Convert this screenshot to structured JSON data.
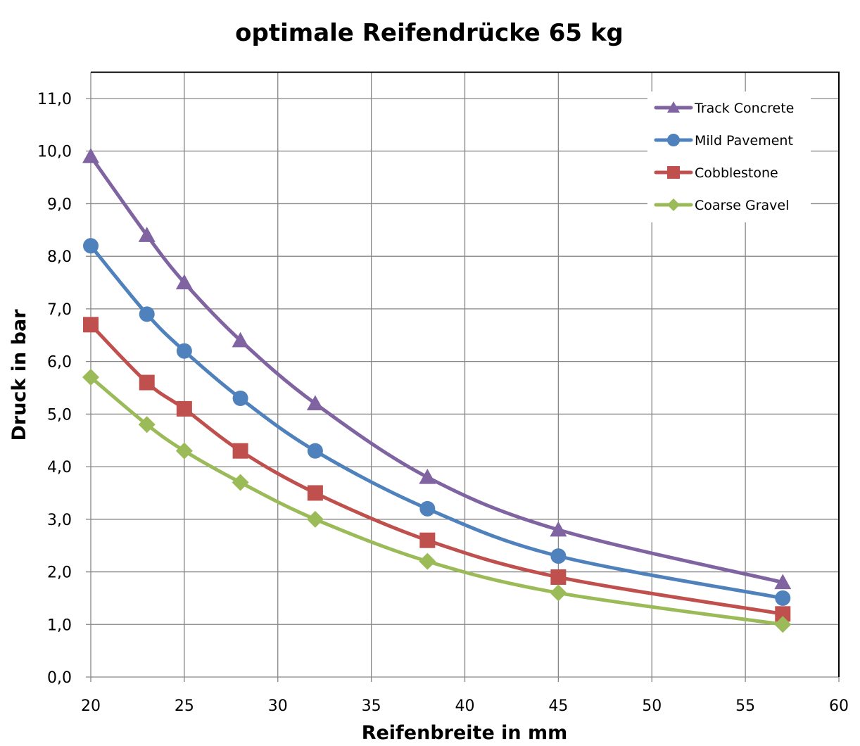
{
  "chart_data": {
    "type": "line",
    "title": "optimale Reifendrücke 65 kg",
    "xlabel": "Reifenbreite in mm",
    "ylabel": "Druck in bar",
    "xlim": [
      20,
      60
    ],
    "ylim": [
      0,
      11.5
    ],
    "x_ticks": [
      20,
      25,
      30,
      35,
      40,
      45,
      50,
      55,
      60
    ],
    "x_tick_labels": [
      "20",
      "25",
      "30",
      "35",
      "40",
      "45",
      "50",
      "55",
      "60"
    ],
    "y_ticks": [
      0,
      1,
      2,
      3,
      4,
      5,
      6,
      7,
      8,
      9,
      10,
      11
    ],
    "y_tick_labels": [
      "0,0",
      "1,0",
      "2,0",
      "3,0",
      "4,0",
      "5,0",
      "6,0",
      "7,0",
      "8,0",
      "9,0",
      "10,0",
      "11,0"
    ],
    "grid": true,
    "smooth": true,
    "legend_position": "top-right",
    "x": [
      20,
      23,
      25,
      28,
      32,
      38,
      45,
      57
    ],
    "series": [
      {
        "name": "Track Concrete",
        "color": "#8064a2",
        "marker": "triangle",
        "values": [
          9.9,
          8.4,
          7.5,
          6.4,
          5.2,
          3.8,
          2.8,
          1.8
        ]
      },
      {
        "name": "Mild Pavement",
        "color": "#4f81bd",
        "marker": "circle",
        "values": [
          8.2,
          6.9,
          6.2,
          5.3,
          4.3,
          3.2,
          2.3,
          1.5
        ]
      },
      {
        "name": "Cobblestone",
        "color": "#c0504d",
        "marker": "square",
        "values": [
          6.7,
          5.6,
          5.1,
          4.3,
          3.5,
          2.6,
          1.9,
          1.2
        ]
      },
      {
        "name": "Coarse Gravel",
        "color": "#9bbb59",
        "marker": "diamond",
        "values": [
          5.7,
          4.8,
          4.3,
          3.7,
          3.0,
          2.2,
          1.6,
          1.0
        ]
      }
    ]
  }
}
